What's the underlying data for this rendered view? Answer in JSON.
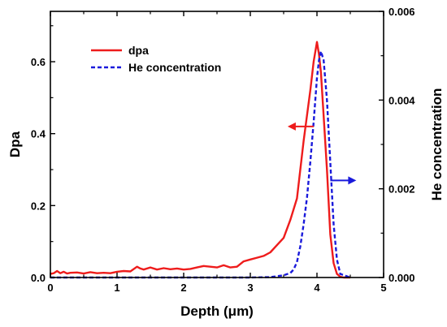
{
  "chart_data": {
    "type": "line",
    "xlabel": "Depth (μm)",
    "ylabel_left": "Dpa",
    "ylabel_right": "He concentration",
    "xlim": [
      0,
      5
    ],
    "ylim_left": [
      0,
      0.74
    ],
    "ylim_right": [
      0,
      0.006
    ],
    "x_ticks": [
      "0",
      "1",
      "2",
      "3",
      "4",
      "5"
    ],
    "y_left_ticks": [
      "0.0",
      "0.2",
      "0.4",
      "0.6"
    ],
    "y_right_ticks": [
      "0.000",
      "0.002",
      "0.004",
      "0.006"
    ],
    "legend_position": "top-left",
    "colors": {
      "dpa": "#ee1c1c",
      "he": "#1a1adb",
      "axis": "#000000"
    },
    "series": [
      {
        "name": "dpa",
        "axis": "left",
        "style": "solid",
        "x": [
          0,
          0.05,
          0.1,
          0.15,
          0.2,
          0.25,
          0.3,
          0.4,
          0.5,
          0.6,
          0.7,
          0.8,
          0.9,
          1.0,
          1.1,
          1.2,
          1.3,
          1.35,
          1.4,
          1.5,
          1.6,
          1.7,
          1.8,
          1.9,
          2.0,
          2.1,
          2.2,
          2.3,
          2.4,
          2.5,
          2.6,
          2.7,
          2.8,
          2.9,
          3.0,
          3.1,
          3.2,
          3.3,
          3.4,
          3.5,
          3.6,
          3.7,
          3.75,
          3.8,
          3.85,
          3.9,
          3.95,
          4.0,
          4.03,
          4.06,
          4.1,
          4.15,
          4.2,
          4.25,
          4.3,
          4.35,
          4.4,
          4.5
        ],
        "y": [
          0.01,
          0.012,
          0.018,
          0.012,
          0.016,
          0.011,
          0.013,
          0.014,
          0.011,
          0.015,
          0.012,
          0.013,
          0.012,
          0.016,
          0.018,
          0.017,
          0.03,
          0.025,
          0.022,
          0.028,
          0.022,
          0.026,
          0.023,
          0.025,
          0.022,
          0.024,
          0.028,
          0.032,
          0.03,
          0.028,
          0.034,
          0.028,
          0.03,
          0.045,
          0.05,
          0.055,
          0.06,
          0.07,
          0.09,
          0.11,
          0.16,
          0.22,
          0.3,
          0.38,
          0.45,
          0.52,
          0.6,
          0.655,
          0.62,
          0.57,
          0.45,
          0.3,
          0.12,
          0.04,
          0.01,
          0.002,
          0.0,
          0.0
        ]
      },
      {
        "name": "He concentration",
        "axis": "right",
        "style": "dashed",
        "x": [
          0,
          1,
          2,
          3,
          3.3,
          3.5,
          3.6,
          3.65,
          3.7,
          3.75,
          3.8,
          3.85,
          3.9,
          3.95,
          4.0,
          4.03,
          4.06,
          4.1,
          4.15,
          4.2,
          4.25,
          4.3,
          4.35,
          4.5
        ],
        "y": [
          0.0,
          0.0,
          0.0,
          0.0,
          1e-05,
          5e-05,
          0.0001,
          0.00018,
          0.00035,
          0.0007,
          0.0012,
          0.0018,
          0.0026,
          0.0035,
          0.0045,
          0.0049,
          0.0051,
          0.0049,
          0.004,
          0.0026,
          0.0012,
          0.0004,
          8e-05,
          0.0
        ]
      }
    ],
    "annotations": [
      {
        "type": "arrow",
        "direction": "left",
        "color": "red",
        "at_x": 3.95,
        "at_y_left": 0.42
      },
      {
        "type": "arrow",
        "direction": "right",
        "color": "blue",
        "at_x": 4.2,
        "at_y_left": 0.27
      }
    ]
  }
}
